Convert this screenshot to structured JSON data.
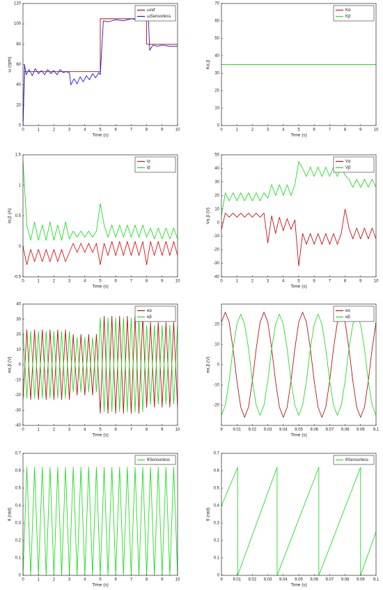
{
  "chart_data": [
    {
      "type": "line",
      "xlabel": "Time (s)",
      "ylabel": "ω (rpm)",
      "xlim": [
        0,
        10
      ],
      "ylim": [
        0,
        120
      ],
      "xticks": [
        0,
        1,
        2,
        3,
        4,
        5,
        6,
        7,
        8,
        9,
        10
      ],
      "yticks": [
        0,
        20,
        40,
        60,
        80,
        100,
        120
      ],
      "series": [
        {
          "name": "ωref",
          "color": "#c00000",
          "x": [
            0,
            0.1,
            5,
            5,
            8,
            8,
            10
          ],
          "values": [
            0,
            53,
            53,
            105,
            105,
            80,
            80
          ]
        },
        {
          "name": "ωSensorless",
          "color": "#1a1ad8",
          "x": [
            0,
            0.1,
            0.2,
            0.4,
            0.6,
            0.8,
            1,
            1.2,
            1.4,
            1.6,
            1.8,
            2,
            2.2,
            2.4,
            2.6,
            2.8,
            3,
            3.1,
            3.3,
            3.5,
            3.7,
            3.9,
            4.1,
            4.3,
            4.5,
            4.7,
            4.9,
            5,
            5.2,
            5.5,
            6,
            6.5,
            7,
            7.5,
            8,
            8.1,
            8.2,
            8.4,
            8.7,
            9,
            9.5,
            10
          ],
          "values": [
            0,
            60,
            50,
            55,
            49,
            56,
            51,
            54,
            50,
            55,
            51,
            54,
            50,
            55,
            52,
            53,
            52,
            40,
            46,
            41,
            48,
            43,
            49,
            45,
            51,
            47,
            52,
            50,
            103,
            102,
            104,
            103,
            105,
            104,
            106,
            110,
            74,
            79,
            78,
            79,
            78,
            78
          ]
        }
      ]
    },
    {
      "type": "line",
      "xlabel": "Time (s)",
      "ylabel": "Kα,β",
      "xlim": [
        0,
        10
      ],
      "ylim": [
        0,
        70
      ],
      "xticks": [
        0,
        1,
        2,
        3,
        4,
        5,
        6,
        7,
        8,
        9,
        10
      ],
      "yticks": [
        0,
        10,
        20,
        30,
        40,
        50,
        60,
        70
      ],
      "x": [
        0,
        10
      ],
      "series": [
        {
          "name": "Kα",
          "color": "#d81818",
          "values": [
            35,
            35
          ]
        },
        {
          "name": "Kβ",
          "color": "#22dd22",
          "values": [
            35,
            35
          ]
        }
      ]
    },
    {
      "type": "line",
      "xlabel": "Time (s)",
      "ylabel": "iα,β (A)",
      "xlim": [
        0,
        10
      ],
      "ylim": [
        -0.5,
        1.5
      ],
      "xticks": [
        0,
        1,
        2,
        3,
        4,
        5,
        6,
        7,
        8,
        9,
        10
      ],
      "yticks": [
        -0.5,
        0,
        0.5,
        1,
        1.5
      ],
      "x": [
        0,
        0.25,
        0.5,
        0.75,
        1,
        1.25,
        1.5,
        1.75,
        2,
        2.25,
        2.5,
        2.75,
        3,
        3.25,
        3.5,
        3.75,
        4,
        4.25,
        4.5,
        4.75,
        5,
        5.25,
        5.5,
        5.75,
        6,
        6.25,
        6.5,
        6.75,
        7,
        7.25,
        7.5,
        7.75,
        8,
        8.25,
        8.5,
        8.75,
        9,
        9.25,
        9.5,
        9.75,
        10
      ],
      "series": [
        {
          "name": "iα",
          "color": "#e01010",
          "values": [
            0,
            -0.3,
            -0.05,
            -0.25,
            -0.05,
            -0.25,
            -0.05,
            -0.25,
            -0.05,
            -0.25,
            -0.05,
            -0.25,
            -0.1,
            0.05,
            -0.1,
            0.05,
            -0.1,
            0.05,
            -0.1,
            0.05,
            -0.3,
            0.05,
            -0.15,
            0.08,
            -0.15,
            0.08,
            -0.15,
            0.08,
            -0.15,
            0.08,
            -0.15,
            0.08,
            -0.3,
            0.08,
            -0.15,
            0.08,
            -0.15,
            0.08,
            -0.15,
            0.08,
            -0.15
          ]
        },
        {
          "name": "iβ",
          "color": "#22dd22",
          "values": [
            1.4,
            0.35,
            0.1,
            0.4,
            0.1,
            0.35,
            0.1,
            0.4,
            0.1,
            0.35,
            0.1,
            0.4,
            0.12,
            0.25,
            0.15,
            0.25,
            0.15,
            0.25,
            0.15,
            0.25,
            0.7,
            0.35,
            0.15,
            0.35,
            0.15,
            0.35,
            0.15,
            0.35,
            0.15,
            0.35,
            0.15,
            0.35,
            0.15,
            0.3,
            0.12,
            0.3,
            0.12,
            0.3,
            0.12,
            0.3,
            0.12
          ]
        }
      ]
    },
    {
      "type": "line",
      "xlabel": "Time (s)",
      "ylabel": "Vα,β (V)",
      "xlim": [
        0,
        10
      ],
      "ylim": [
        -40,
        50
      ],
      "xticks": [
        0,
        1,
        2,
        3,
        4,
        5,
        6,
        7,
        8,
        9,
        10
      ],
      "yticks": [
        -40,
        -30,
        -20,
        -10,
        0,
        10,
        20,
        30,
        40,
        50
      ],
      "x": [
        0,
        0.25,
        0.5,
        0.75,
        1,
        1.25,
        1.5,
        1.75,
        2,
        2.25,
        2.5,
        2.75,
        3,
        3.25,
        3.5,
        3.75,
        4,
        4.25,
        4.5,
        4.75,
        5,
        5.25,
        5.5,
        5.75,
        6,
        6.25,
        6.5,
        6.75,
        7,
        7.25,
        7.5,
        7.75,
        8,
        8.25,
        8.5,
        8.75,
        9,
        9.25,
        9.5,
        9.75,
        10
      ],
      "series": [
        {
          "name": "Vα",
          "color": "#c81010",
          "values": [
            -5,
            7,
            4,
            7,
            4,
            7,
            4,
            7,
            4,
            7,
            4,
            7,
            -15,
            5,
            -8,
            4,
            -6,
            3,
            -5,
            2,
            -32,
            -8,
            -16,
            -8,
            -16,
            -8,
            -16,
            -8,
            -16,
            -8,
            -16,
            -8,
            10,
            -4,
            -12,
            -4,
            -12,
            -4,
            -12,
            -4,
            -12
          ]
        },
        {
          "name": "Vβ",
          "color": "#22dd22",
          "values": [
            5,
            22,
            16,
            22,
            16,
            22,
            16,
            22,
            16,
            22,
            16,
            22,
            18,
            28,
            20,
            28,
            20,
            28,
            20,
            28,
            45,
            40,
            34,
            41,
            34,
            41,
            34,
            41,
            34,
            41,
            34,
            41,
            35,
            32,
            26,
            32,
            26,
            32,
            26,
            32,
            26
          ]
        }
      ]
    },
    {
      "type": "line",
      "xlabel": "Time (s)",
      "ylabel": "eα,β (V)",
      "xlim": [
        0,
        10
      ],
      "ylim": [
        -40,
        40
      ],
      "xticks": [
        0,
        1,
        2,
        3,
        4,
        5,
        6,
        7,
        8,
        9,
        10
      ],
      "yticks": [
        -40,
        -30,
        -20,
        -10,
        0,
        10,
        20,
        30,
        40
      ],
      "x": [
        0,
        0.25,
        0.5,
        0.75,
        1,
        1.25,
        1.5,
        1.75,
        2,
        2.25,
        2.5,
        2.75,
        3,
        3.25,
        3.5,
        3.75,
        4,
        4.25,
        4.5,
        4.75,
        5,
        5.25,
        5.5,
        5.75,
        6,
        6.25,
        6.5,
        6.75,
        7,
        7.25,
        7.5,
        7.75,
        8,
        8.25,
        8.5,
        8.75,
        9,
        9.25,
        9.5,
        9.75,
        10
      ],
      "series": [
        {
          "name": "eα",
          "color": "#b81010",
          "values": [
            -23,
            23,
            -23,
            23,
            -23,
            23,
            -23,
            23,
            -23,
            23,
            -23,
            23,
            -23,
            20,
            -20,
            20,
            -20,
            20,
            -20,
            20,
            -32,
            32,
            -32,
            32,
            -32,
            32,
            -32,
            32,
            -32,
            32,
            -32,
            32,
            -28,
            28,
            -28,
            28,
            -28,
            28,
            -28,
            28,
            -28
          ]
        },
        {
          "name": "eβ",
          "color": "#22dd22",
          "values": [
            22,
            -22,
            22,
            -22,
            22,
            -22,
            22,
            -22,
            22,
            -22,
            22,
            -22,
            22,
            -18,
            18,
            -18,
            18,
            -18,
            18,
            -18,
            31,
            -31,
            31,
            -31,
            31,
            -31,
            31,
            -31,
            31,
            -31,
            31,
            -31,
            26,
            -26,
            26,
            -26,
            26,
            -26,
            26,
            -26,
            26
          ]
        }
      ]
    },
    {
      "type": "line",
      "xlabel": "Time (s)",
      "ylabel": "eα,β (V)",
      "xlim": [
        9,
        9.1
      ],
      "ylim": [
        -30,
        30
      ],
      "xticks": [
        9,
        9.01,
        9.02,
        9.03,
        9.04,
        9.05,
        9.06,
        9.07,
        9.08,
        9.09,
        9.1
      ],
      "yticks": [
        -20,
        -10,
        0,
        10,
        20
      ],
      "x": [
        9,
        9.0025,
        9.005,
        9.0075,
        9.01,
        9.0125,
        9.015,
        9.0175,
        9.02,
        9.0225,
        9.025,
        9.0275,
        9.03,
        9.0325,
        9.035,
        9.0375,
        9.04,
        9.0425,
        9.045,
        9.0475,
        9.05,
        9.0525,
        9.055,
        9.0575,
        9.06,
        9.0625,
        9.065,
        9.0675,
        9.07,
        9.0725,
        9.075,
        9.0775,
        9.08,
        9.0825,
        9.085,
        9.0875,
        9.09,
        9.0925,
        9.095,
        9.0975,
        9.1
      ],
      "series": [
        {
          "name": "eα",
          "color": "#b81010",
          "values": [
            21,
            26,
            21,
            8,
            -8,
            -21,
            -26,
            -21,
            -8,
            8,
            21,
            26,
            21,
            8,
            -8,
            -21,
            -26,
            -21,
            -8,
            8,
            21,
            26,
            21,
            8,
            -8,
            -21,
            -26,
            -21,
            -8,
            8,
            21,
            26,
            21,
            8,
            -8,
            -21,
            -26,
            -21,
            -8,
            8,
            21
          ]
        },
        {
          "name": "eβ",
          "color": "#22dd22",
          "values": [
            -25,
            -20,
            -8,
            8,
            20,
            25,
            20,
            8,
            -8,
            -20,
            -25,
            -20,
            -8,
            8,
            20,
            25,
            20,
            8,
            -8,
            -20,
            -25,
            -20,
            -8,
            8,
            20,
            25,
            20,
            8,
            -8,
            -20,
            -25,
            -20,
            -8,
            8,
            20,
            25,
            20,
            8,
            -8,
            -20,
            -25
          ]
        }
      ]
    },
    {
      "type": "line",
      "xlabel": "Time (s)",
      "ylabel": "θ (rad)",
      "xlim": [
        0,
        10
      ],
      "ylim": [
        0,
        0.7
      ],
      "xticks": [
        0,
        1,
        2,
        3,
        4,
        5,
        6,
        7,
        8,
        9,
        10
      ],
      "yticks": [
        0,
        0.1,
        0.2,
        0.3,
        0.4,
        0.5,
        0.6,
        0.7
      ],
      "x": [
        0,
        0.25,
        0.5,
        0.75,
        1,
        1.25,
        1.5,
        1.75,
        2,
        2.25,
        2.5,
        2.75,
        3,
        3.25,
        3.5,
        3.75,
        4,
        4.25,
        4.5,
        4.75,
        5,
        5.25,
        5.5,
        5.75,
        6,
        6.25,
        6.5,
        6.75,
        7,
        7.25,
        7.5,
        7.75,
        8,
        8.25,
        8.5,
        8.75,
        9,
        9.25,
        9.5,
        9.75,
        10
      ],
      "series": [
        {
          "name": "θSensorless",
          "color": "#22dd22",
          "values": [
            0,
            0.62,
            0,
            0.62,
            0,
            0.62,
            0,
            0.62,
            0,
            0.62,
            0,
            0.62,
            0,
            0.62,
            0,
            0.62,
            0,
            0.62,
            0,
            0.62,
            0,
            0.62,
            0,
            0.62,
            0,
            0.62,
            0,
            0.62,
            0,
            0.62,
            0,
            0.62,
            0,
            0.62,
            0,
            0.62,
            0,
            0.62,
            0,
            0.62,
            0
          ]
        }
      ]
    },
    {
      "type": "line",
      "xlabel": "Time (s)",
      "ylabel": "θ (rad)",
      "xlim": [
        9,
        9.1
      ],
      "ylim": [
        0,
        0.7
      ],
      "xticks": [
        9,
        9.01,
        9.02,
        9.03,
        9.04,
        9.05,
        9.06,
        9.07,
        9.08,
        9.09,
        9.1
      ],
      "yticks": [
        0,
        0.1,
        0.2,
        0.3,
        0.4,
        0.5,
        0.6,
        0.7
      ],
      "x": [
        9,
        9.0105,
        9.0105,
        9.036,
        9.036,
        9.063,
        9.063,
        9.09,
        9.09,
        9.1
      ],
      "series": [
        {
          "name": "θSensorless",
          "color": "#22dd22",
          "values": [
            0.4,
            0.62,
            0,
            0.62,
            0,
            0.62,
            0,
            0.62,
            0,
            0.25
          ]
        }
      ]
    }
  ]
}
